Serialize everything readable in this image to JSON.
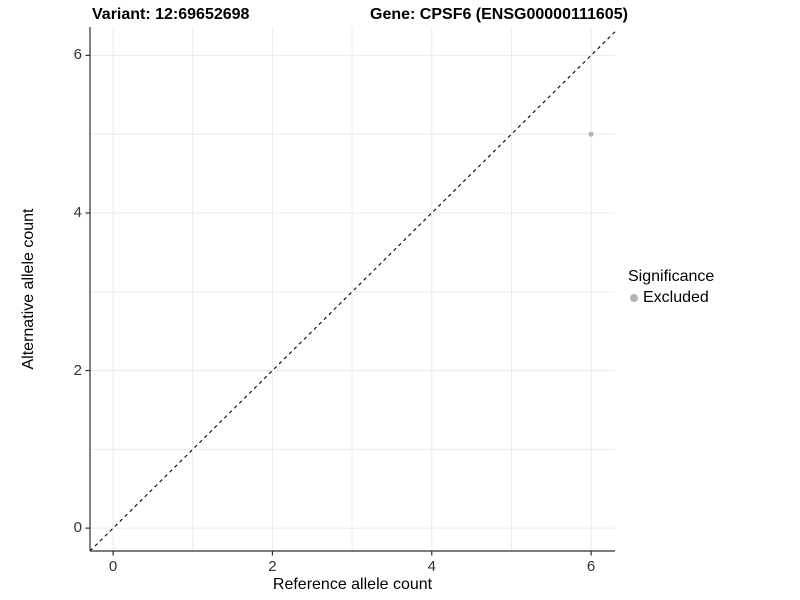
{
  "header": {
    "variant_title": "Variant: 12:69652698",
    "gene_title": "Gene: CPSF6 (ENSG00000111605)"
  },
  "chart_data": {
    "type": "scatter",
    "title_left": "Variant: 12:69652698",
    "title_right": "Gene: CPSF6 (ENSG00000111605)",
    "xlabel": "Reference allele count",
    "ylabel": "Alternative allele count",
    "xlim": [
      -0.29,
      6.3
    ],
    "ylim": [
      -0.29,
      6.36
    ],
    "x_ticks": [
      0,
      2,
      4,
      6
    ],
    "y_ticks": [
      0,
      2,
      4,
      6
    ],
    "grid_values_x": [
      0,
      1,
      2,
      3,
      4,
      5,
      6
    ],
    "grid_values_y": [
      0,
      1,
      2,
      3,
      4,
      5,
      6
    ],
    "grid": true,
    "points": [
      {
        "x": 6,
        "y": 5,
        "series": "Excluded"
      }
    ],
    "reference_line": {
      "equation": "y = x",
      "style": "dashed",
      "color": "#000000"
    },
    "legend": {
      "title": "Significance",
      "position": "right",
      "entries": [
        {
          "label": "Excluded",
          "color": "#b4b4b4"
        }
      ]
    },
    "colors": {
      "point": "#b4b4b4",
      "grid": "#ebebeb",
      "axis": "#2e2e2e",
      "tick_label": "#333333"
    }
  }
}
